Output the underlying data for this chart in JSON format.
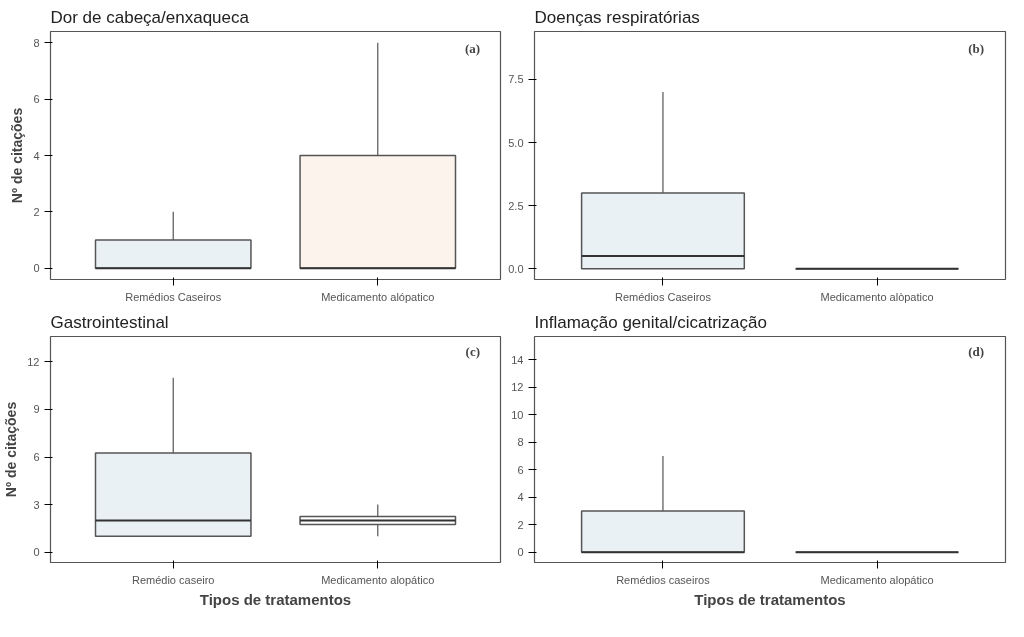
{
  "chart_data": [
    {
      "type": "box",
      "title": "Dor de cabeça/enxaqueca",
      "ylabel": "Nº de citações",
      "categories": [
        "Remédios Caseiros",
        "Medicamento alópatico"
      ],
      "colors": [
        "#eaf1f5",
        "#fbf3ec"
      ],
      "boxes": [
        {
          "low": 0,
          "q1": 0,
          "median": 0,
          "q3": 1,
          "high": 2
        },
        {
          "low": 0,
          "q1": 0,
          "median": 0,
          "q3": 4,
          "high": 8
        }
      ],
      "ylim": [
        -0.4,
        8.4
      ],
      "yticks": [
        0,
        2,
        4,
        6,
        8
      ],
      "annotations": [
        "(a)"
      ]
    },
    {
      "type": "box",
      "title": "Doenças respiratórias",
      "categories": [
        "Remédios Caseiros",
        "Medicamento alòpatico"
      ],
      "colors": [
        "#eaf1f5",
        null
      ],
      "boxes": [
        {
          "low": 0,
          "q1": 0,
          "median": 0.5,
          "q3": 3,
          "high": 7
        },
        {
          "low": 0,
          "q1": 0,
          "median": 0,
          "q3": 0,
          "high": 0
        }
      ],
      "ylim": [
        -0.43,
        9.4
      ],
      "yticks": [
        {
          "value": 0,
          "label": "0.0"
        },
        2.5,
        {
          "value": 5,
          "label": "5.0"
        },
        7.5
      ],
      "annotations": [
        "(b)"
      ]
    },
    {
      "type": "box",
      "title": "Gastrointestinal",
      "ylabel": "Nº de citações",
      "xlabel": "Tipos de tratamentos",
      "categories": [
        "Remédio caseiro",
        "Medicamento alopático"
      ],
      "colors": [
        "#eaf1f5",
        "#ffffff"
      ],
      "boxes": [
        {
          "low": 1,
          "q1": 1,
          "median": 2,
          "q3": 6.25,
          "high": 11
        },
        {
          "low": 1,
          "q1": 1.75,
          "median": 2,
          "q3": 2.25,
          "high": 3
        }
      ],
      "ylim": [
        -0.65,
        13.6
      ],
      "yticks": [
        0,
        3,
        6,
        9,
        12
      ],
      "annotations": [
        "(c)"
      ]
    },
    {
      "type": "box",
      "title": "Inflamação genital/cicatrização",
      "xlabel": "Tipos de tratamentos",
      "categories": [
        "Remédios caseiros",
        "Medicamento alopático"
      ],
      "colors": [
        "#eaf1f5",
        null
      ],
      "boxes": [
        {
          "low": 0,
          "q1": 0,
          "median": 0,
          "q3": 3,
          "high": 7
        },
        {
          "low": 0,
          "q1": 0,
          "median": 0,
          "q3": 0,
          "high": 0
        }
      ],
      "ylim": [
        -0.74,
        15.7
      ],
      "yticks": [
        0,
        2,
        4,
        6,
        8,
        10,
        12,
        14
      ],
      "annotations": [
        "(d)"
      ]
    }
  ]
}
